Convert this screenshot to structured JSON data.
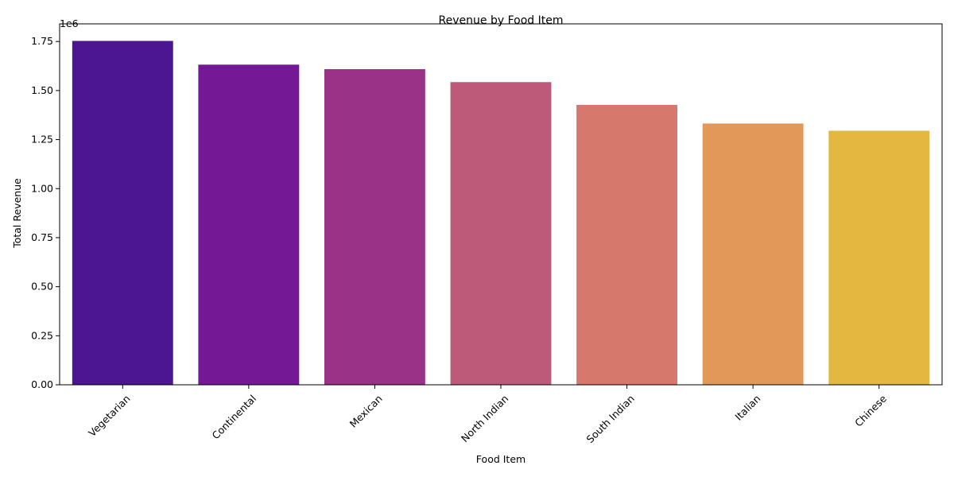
{
  "chart_data": {
    "type": "bar",
    "title": "Revenue by Food Item",
    "xlabel": "Food Item",
    "ylabel": "Total Revenue",
    "y_offset_label": "1e6",
    "categories": [
      "Vegetarian",
      "Continental",
      "Mexican",
      "North Indian",
      "South Indian",
      "Italian",
      "Chinese"
    ],
    "values": [
      1753000,
      1632000,
      1609000,
      1543000,
      1427000,
      1332000,
      1295000
    ],
    "colors": [
      "#4c1591",
      "#741896",
      "#9a3288",
      "#bd5979",
      "#d6786c",
      "#e19859",
      "#e3b841"
    ],
    "ylim": [
      0,
      1840000
    ],
    "yticks": [
      0,
      250000,
      500000,
      750000,
      1000000,
      1250000,
      1500000,
      1750000
    ],
    "ytick_labels": [
      "0.00",
      "0.25",
      "0.50",
      "0.75",
      "1.00",
      "1.25",
      "1.50",
      "1.75"
    ],
    "grid": false,
    "legend": "none"
  }
}
